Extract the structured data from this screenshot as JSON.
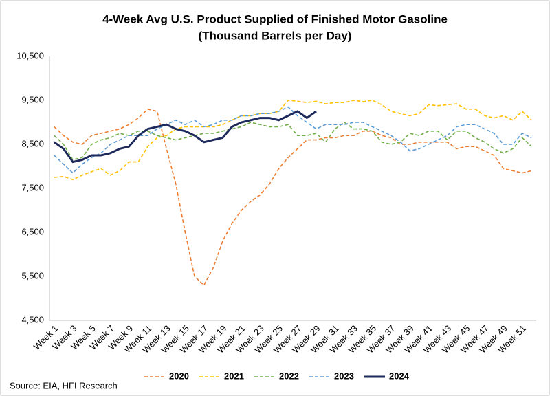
{
  "chart_data": {
    "type": "line",
    "title": "4-Week Avg U.S. Product Supplied of Finished Motor Gasoline",
    "subtitle": "(Thousand Barrels per Day)",
    "source": "Source: EIA, HFI Research",
    "categories": [
      "Week 1",
      null,
      "Week 3",
      null,
      "Week 5",
      null,
      "Week 7",
      null,
      "Week 9",
      null,
      "Week 11",
      null,
      "Week 13",
      null,
      "Week 15",
      null,
      "Week 17",
      null,
      "Week 19",
      null,
      "Week 21",
      null,
      "Week 23",
      null,
      "Week 25",
      null,
      "Week 27",
      null,
      "Week 29",
      null,
      "Week 31",
      null,
      "Week 33",
      null,
      "Week 35",
      null,
      "Week 37",
      null,
      "Week 39",
      null,
      "Week 41",
      null,
      "Week 43",
      null,
      "Week 45",
      null,
      "Week 47",
      null,
      "Week 49",
      null,
      "Week 51",
      null
    ],
    "ylim": [
      4500,
      10500
    ],
    "yticks": [
      {
        "value": 4500,
        "label": "4,500"
      },
      {
        "value": 5500,
        "label": "5,500"
      },
      {
        "value": 6500,
        "label": "6,500"
      },
      {
        "value": 7500,
        "label": "7,500"
      },
      {
        "value": 8500,
        "label": "8,500"
      },
      {
        "value": 9500,
        "label": "9,500"
      },
      {
        "value": 10500,
        "label": "10,500"
      }
    ],
    "grid": false,
    "legend": "bottom",
    "series": [
      {
        "name": "2020",
        "color": "#ed7d31",
        "dashed": true,
        "values": [
          8900,
          8700,
          8550,
          8500,
          8700,
          8750,
          8800,
          8850,
          8950,
          9100,
          9300,
          9250,
          8400,
          7600,
          6500,
          5500,
          5300,
          5700,
          6300,
          6700,
          7000,
          7200,
          7350,
          7600,
          7950,
          8200,
          8400,
          8600,
          8600,
          8650,
          8650,
          8700,
          8700,
          8800,
          8800,
          8700,
          8650,
          8500,
          8500,
          8550,
          8550,
          8550,
          8550,
          8400,
          8450,
          8450,
          8350,
          8250,
          7950,
          7900,
          7850,
          7900
        ]
      },
      {
        "name": "2021",
        "color": "#ffc000",
        "dashed": true,
        "values": [
          7750,
          7770,
          7700,
          7800,
          7880,
          7950,
          7800,
          7900,
          8100,
          8100,
          8450,
          8650,
          8700,
          8850,
          8900,
          8900,
          8900,
          8900,
          8950,
          9050,
          9150,
          9150,
          9200,
          9200,
          9250,
          9500,
          9480,
          9450,
          9480,
          9420,
          9450,
          9450,
          9500,
          9470,
          9500,
          9400,
          9250,
          9200,
          9150,
          9200,
          9400,
          9380,
          9400,
          9420,
          9300,
          9300,
          9150,
          9100,
          9150,
          9050,
          9250,
          9050
        ]
      },
      {
        "name": "2022",
        "color": "#70ad47",
        "dashed": true,
        "values": [
          8700,
          8500,
          8150,
          8200,
          8500,
          8600,
          8650,
          8750,
          8700,
          8800,
          8800,
          8700,
          8650,
          8600,
          8650,
          8700,
          8750,
          8750,
          8800,
          8850,
          8900,
          9000,
          8950,
          8900,
          8900,
          8950,
          8700,
          8700,
          8750,
          8550,
          8850,
          9000,
          8850,
          8850,
          8800,
          8550,
          8500,
          8550,
          8750,
          8700,
          8800,
          8800,
          8600,
          8800,
          8800,
          8650,
          8550,
          8400,
          8300,
          8400,
          8650,
          8450
        ]
      },
      {
        "name": "2023",
        "color": "#5b9bd5",
        "dashed": true,
        "values": [
          8250,
          8050,
          7850,
          8050,
          8200,
          8300,
          8500,
          8600,
          8700,
          8700,
          8700,
          8850,
          8950,
          9050,
          8950,
          9050,
          8900,
          8950,
          9050,
          9050,
          9150,
          9150,
          9200,
          9200,
          9250,
          9350,
          9150,
          9000,
          8850,
          8950,
          8950,
          8950,
          9000,
          9000,
          8900,
          8800,
          8700,
          8550,
          8350,
          8400,
          8500,
          8600,
          8700,
          8900,
          8950,
          8950,
          8850,
          8750,
          8500,
          8500,
          8750,
          8650
        ]
      },
      {
        "name": "2024",
        "color": "#1f2a5c",
        "dashed": false,
        "values": [
          8550,
          8400,
          8100,
          8150,
          8250,
          8250,
          8300,
          8400,
          8450,
          8700,
          8850,
          8900,
          8950,
          8850,
          8800,
          8700,
          8550,
          8600,
          8650,
          8900,
          9000,
          9050,
          9100,
          9100,
          9050,
          9150,
          9250,
          9100,
          9250,
          null,
          null,
          null,
          null,
          null,
          null,
          null,
          null,
          null,
          null,
          null,
          null,
          null,
          null,
          null,
          null,
          null,
          null,
          null,
          null,
          null,
          null,
          null
        ]
      }
    ]
  }
}
